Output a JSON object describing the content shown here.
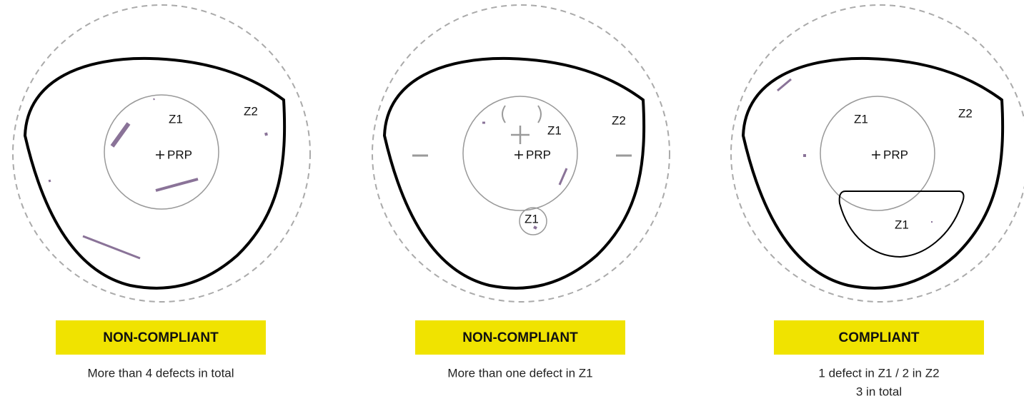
{
  "panels": [
    {
      "zone_labels": [
        "Z1",
        "Z2"
      ],
      "reference": "PRP",
      "status": "NON-COMPLIANT",
      "description": [
        "More than 4 defects in total"
      ]
    },
    {
      "zone_labels": [
        "Z1",
        "Z2",
        "Z1"
      ],
      "reference": "PRP",
      "status": "NON-COMPLIANT",
      "description": [
        "More than one defect in Z1"
      ]
    },
    {
      "zone_labels": [
        "Z1",
        "Z2",
        "Z1"
      ],
      "reference": "PRP",
      "status": "COMPLIANT",
      "description": [
        "1 defect in Z1 / 2 in Z2",
        "3 in total"
      ]
    }
  ]
}
